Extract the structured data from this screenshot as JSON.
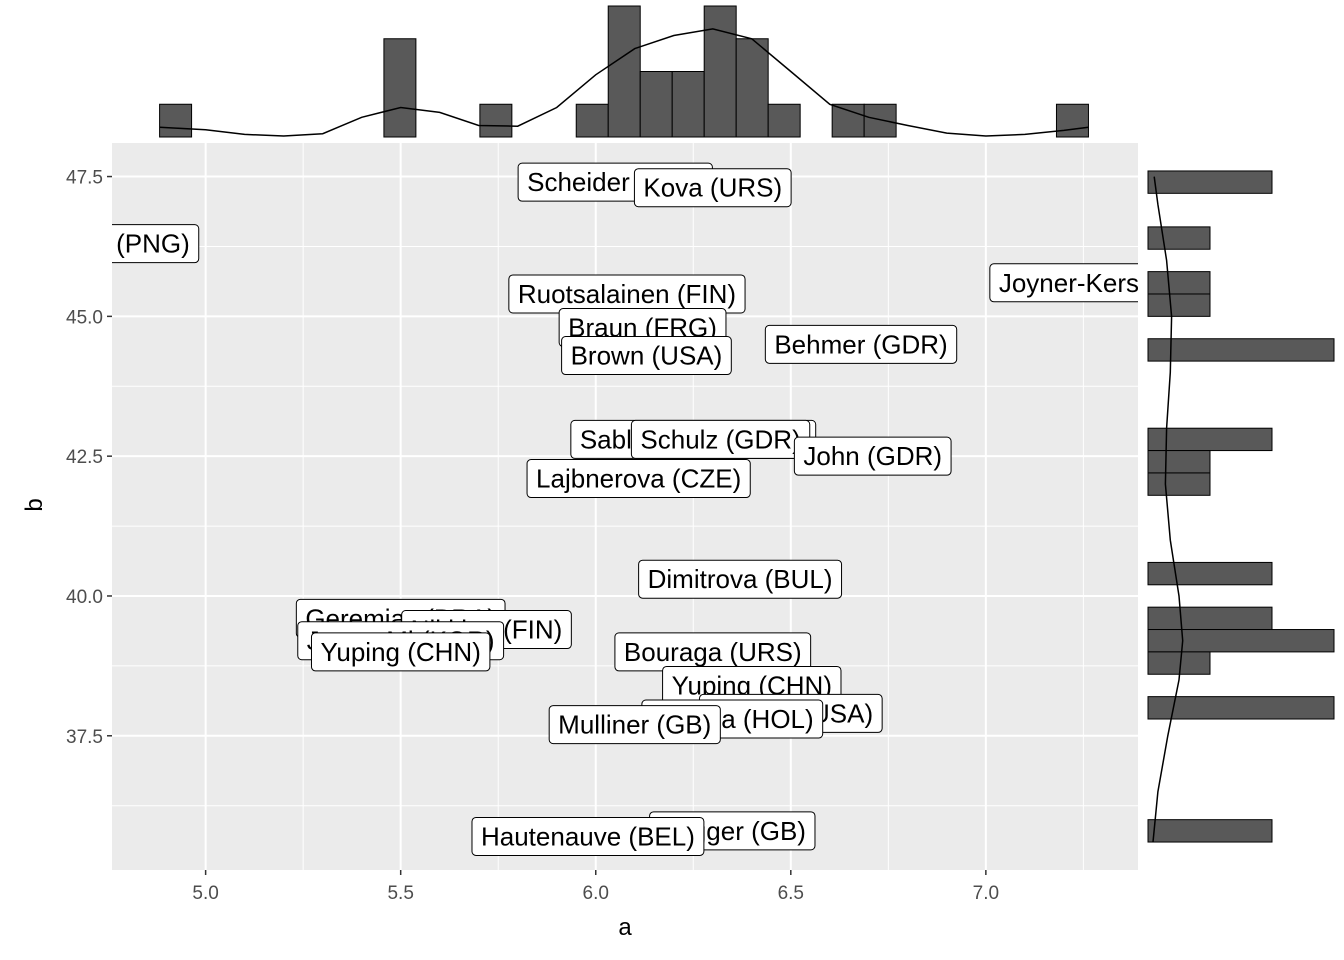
{
  "chart_data": {
    "type": "scatter",
    "subtype": "labeled scatter with marginal histograms and density curves",
    "xlabel": "a",
    "ylabel": "b",
    "xlim": [
      4.76,
      7.39
    ],
    "ylim": [
      35.1,
      48.1
    ],
    "x_ticks": [
      5.0,
      5.5,
      6.0,
      6.5,
      7.0
    ],
    "x_tick_labels": [
      "5.0",
      "5.5",
      "6.0",
      "6.5",
      "7.0"
    ],
    "y_ticks": [
      37.5,
      40.0,
      42.5,
      45.0,
      47.5
    ],
    "y_tick_labels": [
      "37.5",
      "40.0",
      "42.5",
      "45.0",
      "47.5"
    ],
    "grid": true,
    "background": "#ebebeb",
    "bar_color": "#595959",
    "points": [
      {
        "label": "Scheider (SWI)",
        "x": 6.05,
        "y": 47.4
      },
      {
        "label": "Kova (URS)",
        "x": 6.3,
        "y": 47.3
      },
      {
        "label": "una (PNG)",
        "x": 4.8,
        "y": 46.3
      },
      {
        "label": "Ruotsalainen (FIN)",
        "x": 6.08,
        "y": 45.4
      },
      {
        "label": "Joyner-Kersee",
        "x": 7.25,
        "y": 45.6
      },
      {
        "label": "Braun (FRG)",
        "x": 6.12,
        "y": 44.8
      },
      {
        "label": "Brown (USA)",
        "x": 6.13,
        "y": 44.3
      },
      {
        "label": "Behmer (GDR)",
        "x": 6.68,
        "y": 44.5
      },
      {
        "label": "Sablovskaite (URS)",
        "x": 6.25,
        "y": 42.8
      },
      {
        "label": "Schulz (GDR)",
        "x": 6.32,
        "y": 42.8
      },
      {
        "label": "John (GDR)",
        "x": 6.71,
        "y": 42.5
      },
      {
        "label": "Lajbnerova (CZE)",
        "x": 6.11,
        "y": 42.1
      },
      {
        "label": "Dimitrova (BUL)",
        "x": 6.37,
        "y": 40.3
      },
      {
        "label": "Geremias (BRA)",
        "x": 5.5,
        "y": 39.6
      },
      {
        "label": "Nikitina (FIN)",
        "x": 5.72,
        "y": 39.4
      },
      {
        "label": "Jeong-Mi (KOR)",
        "x": 5.5,
        "y": 39.2
      },
      {
        "label": "Yuping (CHN)",
        "x": 5.5,
        "y": 39.0
      },
      {
        "label": "Bouraga (URS)",
        "x": 6.3,
        "y": 39.0
      },
      {
        "label": "Yuping (CHN)",
        "x": 6.4,
        "y": 38.4
      },
      {
        "label": "Greiner (USA)",
        "x": 6.5,
        "y": 37.9
      },
      {
        "label": "Vaidina (HOL)",
        "x": 6.35,
        "y": 37.8
      },
      {
        "label": "Mulliner (GB)",
        "x": 6.1,
        "y": 37.7
      },
      {
        "label": "Hagger (GB)",
        "x": 6.35,
        "y": 35.8
      },
      {
        "label": "Hautenauve (BEL)",
        "x": 5.98,
        "y": 35.7
      }
    ],
    "marginal_x_histogram": {
      "bins": [
        {
          "x0": 4.882,
          "x1": 4.964,
          "count": 1
        },
        {
          "x0": 5.457,
          "x1": 5.539,
          "count": 3
        },
        {
          "x0": 5.703,
          "x1": 5.785,
          "count": 1
        },
        {
          "x0": 5.95,
          "x1": 6.032,
          "count": 1
        },
        {
          "x0": 6.032,
          "x1": 6.114,
          "count": 4
        },
        {
          "x0": 6.114,
          "x1": 6.196,
          "count": 2
        },
        {
          "x0": 6.196,
          "x1": 6.278,
          "count": 2
        },
        {
          "x0": 6.278,
          "x1": 6.36,
          "count": 4
        },
        {
          "x0": 6.36,
          "x1": 6.442,
          "count": 3
        },
        {
          "x0": 6.442,
          "x1": 6.524,
          "count": 1
        },
        {
          "x0": 6.606,
          "x1": 6.688,
          "count": 1
        },
        {
          "x0": 6.688,
          "x1": 6.77,
          "count": 1
        },
        {
          "x0": 7.181,
          "x1": 7.263,
          "count": 1
        }
      ],
      "ymax": 4
    },
    "marginal_y_histogram": {
      "bins": [
        {
          "y0": 47.2,
          "y1": 47.6,
          "count": 2
        },
        {
          "y0": 46.2,
          "y1": 46.6,
          "count": 1
        },
        {
          "y0": 45.4,
          "y1": 45.8,
          "count": 1
        },
        {
          "y0": 45.0,
          "y1": 45.4,
          "count": 1
        },
        {
          "y0": 44.2,
          "y1": 44.6,
          "count": 3
        },
        {
          "y0": 42.6,
          "y1": 43.0,
          "count": 2
        },
        {
          "y0": 42.2,
          "y1": 42.6,
          "count": 1
        },
        {
          "y0": 41.8,
          "y1": 42.2,
          "count": 1
        },
        {
          "y0": 40.2,
          "y1": 40.6,
          "count": 2
        },
        {
          "y0": 39.4,
          "y1": 39.8,
          "count": 2
        },
        {
          "y0": 39.0,
          "y1": 39.4,
          "count": 3
        },
        {
          "y0": 38.6,
          "y1": 39.0,
          "count": 1
        },
        {
          "y0": 37.8,
          "y1": 38.2,
          "count": 3
        },
        {
          "y0": 35.6,
          "y1": 36.0,
          "count": 2
        }
      ],
      "xmax": 3
    },
    "density_x": [
      [
        4.882,
        0.3
      ],
      [
        5.0,
        0.22
      ],
      [
        5.1,
        0.08
      ],
      [
        5.2,
        0.03
      ],
      [
        5.3,
        0.1
      ],
      [
        5.4,
        0.6
      ],
      [
        5.5,
        0.9
      ],
      [
        5.6,
        0.75
      ],
      [
        5.7,
        0.35
      ],
      [
        5.8,
        0.33
      ],
      [
        5.9,
        0.9
      ],
      [
        6.0,
        1.9
      ],
      [
        6.1,
        2.7
      ],
      [
        6.2,
        3.1
      ],
      [
        6.3,
        3.3
      ],
      [
        6.4,
        3.0
      ],
      [
        6.5,
        2.0
      ],
      [
        6.6,
        1.0
      ],
      [
        6.7,
        0.6
      ],
      [
        6.8,
        0.35
      ],
      [
        6.9,
        0.12
      ],
      [
        7.0,
        0.03
      ],
      [
        7.1,
        0.08
      ],
      [
        7.2,
        0.2
      ],
      [
        7.263,
        0.3
      ]
    ],
    "density_y": [
      [
        35.6,
        0.08
      ],
      [
        36.5,
        0.16
      ],
      [
        37.5,
        0.32
      ],
      [
        38.5,
        0.5
      ],
      [
        39.2,
        0.56
      ],
      [
        40.0,
        0.5
      ],
      [
        41.0,
        0.36
      ],
      [
        42.0,
        0.28
      ],
      [
        43.0,
        0.3
      ],
      [
        44.0,
        0.36
      ],
      [
        45.0,
        0.38
      ],
      [
        46.0,
        0.3
      ],
      [
        47.0,
        0.16
      ],
      [
        47.5,
        0.1
      ]
    ]
  }
}
